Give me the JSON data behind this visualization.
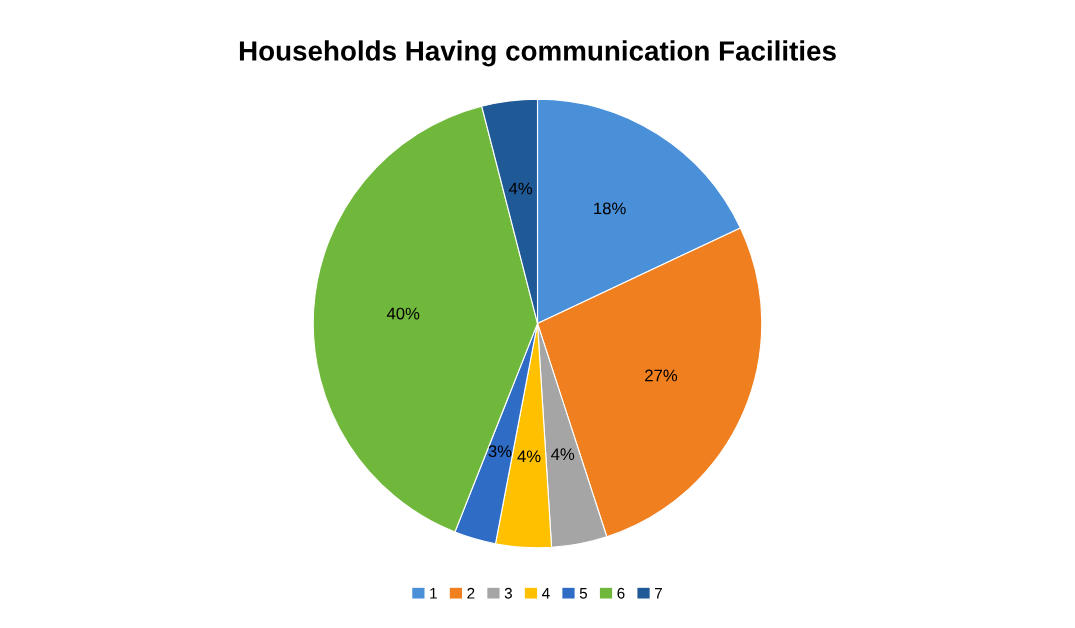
{
  "chart_data": {
    "type": "pie",
    "title": "Households Having communication Facilities",
    "categories": [
      "1",
      "2",
      "3",
      "4",
      "5",
      "6",
      "7"
    ],
    "values": [
      18,
      27,
      4,
      4,
      3,
      40,
      4
    ],
    "value_labels": [
      "18%",
      "27%",
      "4%",
      "4%",
      "3%",
      "40%",
      "4%"
    ],
    "colors": [
      "#4a90d9",
      "#f07f1f",
      "#a5a5a5",
      "#ffc000",
      "#2f6cc6",
      "#70b83c",
      "#1f5a96"
    ],
    "legend": "bottom"
  }
}
